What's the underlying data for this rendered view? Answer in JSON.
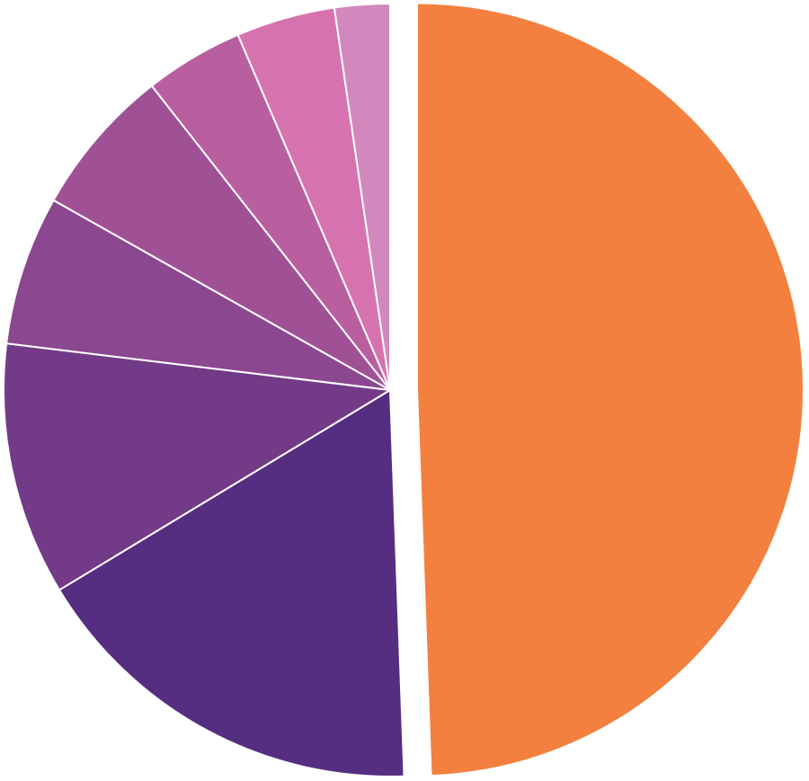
{
  "chart_data": {
    "type": "pie",
    "title": "",
    "start_angle_deg": 0,
    "direction": "clockwise",
    "exploded_slice_index": 0,
    "slices": [
      {
        "label": "",
        "value": 51.4,
        "color": "#F3803F"
      },
      {
        "label": "",
        "value": 17.6,
        "color": "#552D81"
      },
      {
        "label": "",
        "value": 11.0,
        "color": "#733A87"
      },
      {
        "label": "",
        "value": 6.5,
        "color": "#8C4791"
      },
      {
        "label": "",
        "value": 6.5,
        "color": "#A05196"
      },
      {
        "label": "",
        "value": 4.3,
        "color": "#B95E9F"
      },
      {
        "label": "",
        "value": 4.3,
        "color": "#D673AE"
      },
      {
        "label": "",
        "value": 2.4,
        "color": "#D288BC"
      }
    ]
  }
}
